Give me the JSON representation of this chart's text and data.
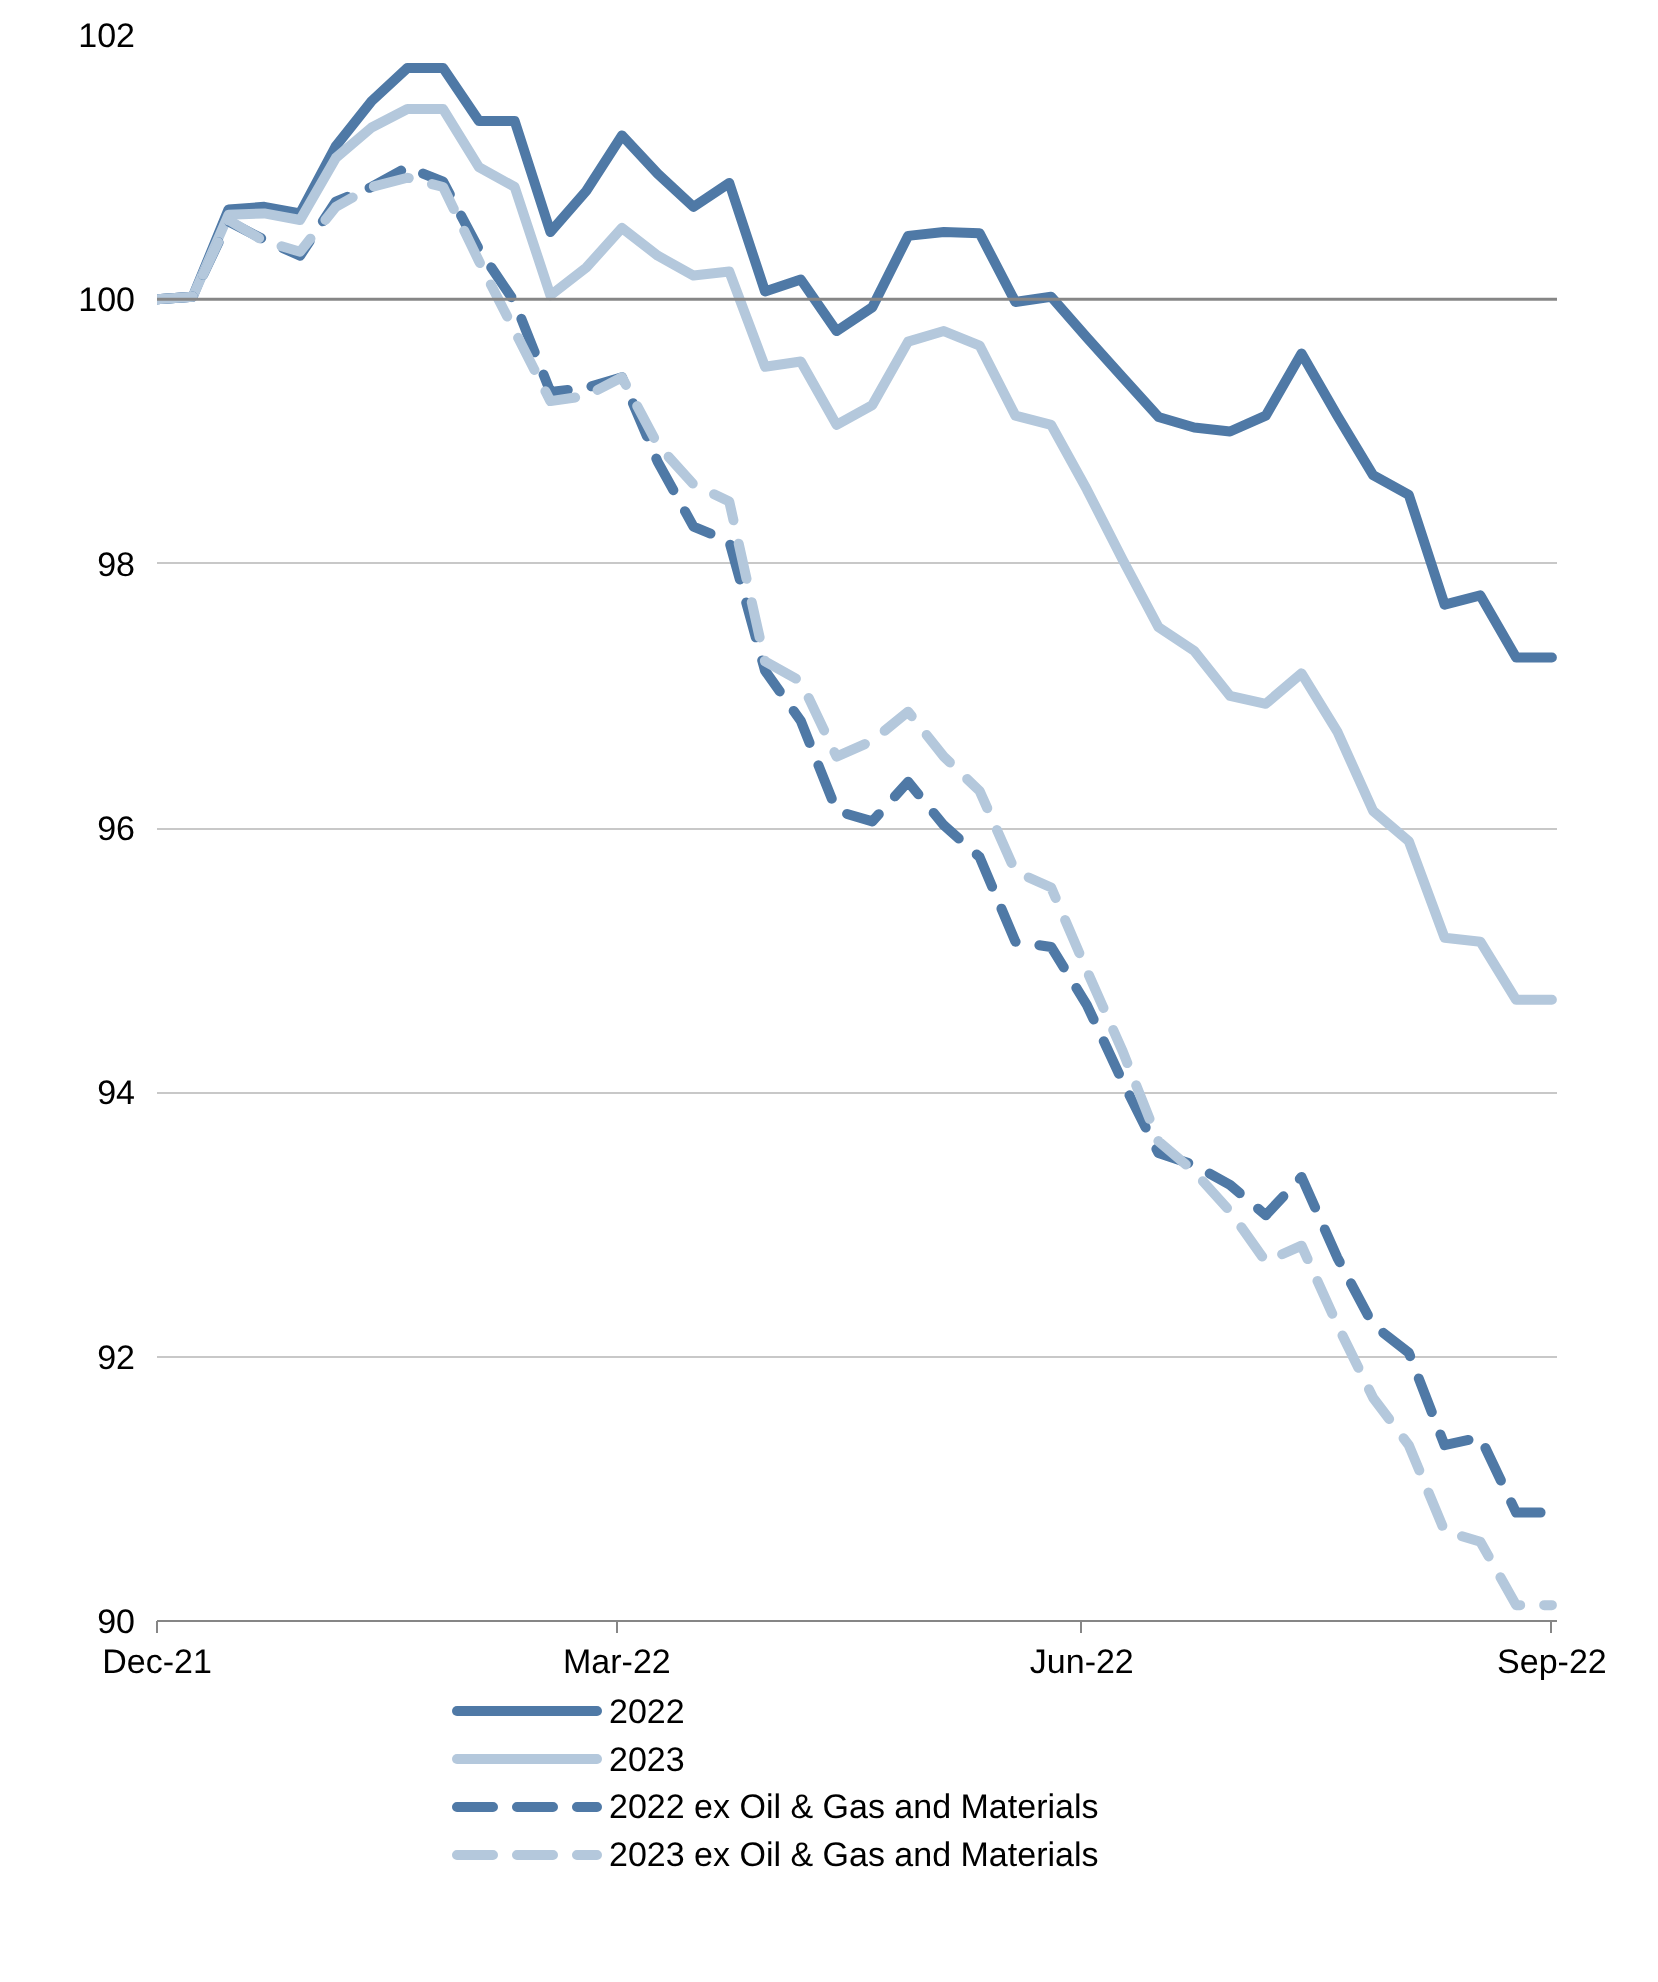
{
  "chart_data": {
    "type": "line",
    "x": [
      "2021-12-31",
      "2022-01-07",
      "2022-01-14",
      "2022-01-21",
      "2022-01-28",
      "2022-02-04",
      "2022-02-11",
      "2022-02-18",
      "2022-02-25",
      "2022-03-04",
      "2022-03-11",
      "2022-03-18",
      "2022-03-25",
      "2022-04-01",
      "2022-04-08",
      "2022-04-15",
      "2022-04-22",
      "2022-04-29",
      "2022-05-06",
      "2022-05-13",
      "2022-05-20",
      "2022-05-27",
      "2022-06-03",
      "2022-06-10",
      "2022-06-17",
      "2022-06-24",
      "2022-07-01",
      "2022-07-08",
      "2022-07-15",
      "2022-07-22",
      "2022-07-29",
      "2022-08-05",
      "2022-08-12",
      "2022-08-19",
      "2022-08-26",
      "2022-09-02",
      "2022-09-09",
      "2022-09-16",
      "2022-09-23",
      "2022-09-30"
    ],
    "series": [
      {
        "name": "2022",
        "color": "#4f79a6",
        "line_style": "solid",
        "values": [
          100.0,
          100.02,
          100.68,
          100.7,
          100.65,
          101.16,
          101.5,
          101.75,
          101.75,
          101.35,
          101.35,
          100.51,
          100.82,
          101.24,
          100.95,
          100.7,
          100.88,
          100.06,
          100.15,
          99.76,
          99.94,
          100.48,
          100.51,
          100.5,
          99.98,
          100.02,
          99.71,
          99.41,
          99.11,
          99.03,
          99.0,
          99.12,
          99.59,
          99.12,
          98.67,
          98.52,
          97.69,
          97.76,
          97.29,
          97.29
        ]
      },
      {
        "name": "2023",
        "color": "#b4c8dc",
        "line_style": "solid",
        "values": [
          100.0,
          100.02,
          100.64,
          100.65,
          100.6,
          101.07,
          101.3,
          101.44,
          101.44,
          101.0,
          100.85,
          100.03,
          100.24,
          100.54,
          100.33,
          100.18,
          100.21,
          99.49,
          99.53,
          99.05,
          99.2,
          99.68,
          99.76,
          99.65,
          99.12,
          99.05,
          98.56,
          98.03,
          97.52,
          97.34,
          97.0,
          96.94,
          97.17,
          96.73,
          96.13,
          95.9,
          95.17,
          95.14,
          94.7,
          94.7
        ]
      },
      {
        "name": "2022 ex Oil & Gas and Materials",
        "color": "#4f79a6",
        "line_style": "dashed",
        "values": [
          100.0,
          100.02,
          100.59,
          100.45,
          100.33,
          100.74,
          100.85,
          101.0,
          100.89,
          100.38,
          99.98,
          99.3,
          99.33,
          99.41,
          98.77,
          98.28,
          98.17,
          97.19,
          96.81,
          96.13,
          96.05,
          96.35,
          96.02,
          95.78,
          95.14,
          95.1,
          94.66,
          94.08,
          93.54,
          93.45,
          93.3,
          93.07,
          93.36,
          92.75,
          92.24,
          92.03,
          91.33,
          91.39,
          90.82,
          90.82
        ]
      },
      {
        "name": "2023 ex Oil & Gas and Materials",
        "color": "#b4c8dc",
        "line_style": "dashed",
        "values": [
          100.0,
          100.02,
          100.6,
          100.44,
          100.36,
          100.7,
          100.85,
          100.92,
          100.85,
          100.29,
          99.76,
          99.23,
          99.27,
          99.41,
          98.9,
          98.6,
          98.47,
          97.26,
          97.11,
          96.54,
          96.66,
          96.88,
          96.54,
          96.28,
          95.67,
          95.55,
          94.92,
          94.31,
          93.63,
          93.4,
          93.1,
          92.72,
          92.84,
          92.24,
          91.69,
          91.33,
          90.68,
          90.6,
          90.12,
          90.12
        ]
      }
    ],
    "xlim": [
      "2021-12-31",
      "2022-10-01"
    ],
    "xticks": [
      {
        "value": "2021-12-31",
        "label": "Dec-21"
      },
      {
        "value": "2022-03-31",
        "label": "Mar-22"
      },
      {
        "value": "2022-06-30",
        "label": "Jun-22"
      },
      {
        "value": "2022-09-30",
        "label": "Sep-22"
      }
    ],
    "ylim": [
      90,
      102
    ],
    "yticks": [
      90,
      92,
      94,
      96,
      98,
      100,
      102
    ],
    "ref_lines": [
      {
        "axis": "y",
        "value": 100,
        "label": null,
        "color": "#868686"
      }
    ],
    "grid": "y",
    "legend": "bottom",
    "marker": "none"
  }
}
